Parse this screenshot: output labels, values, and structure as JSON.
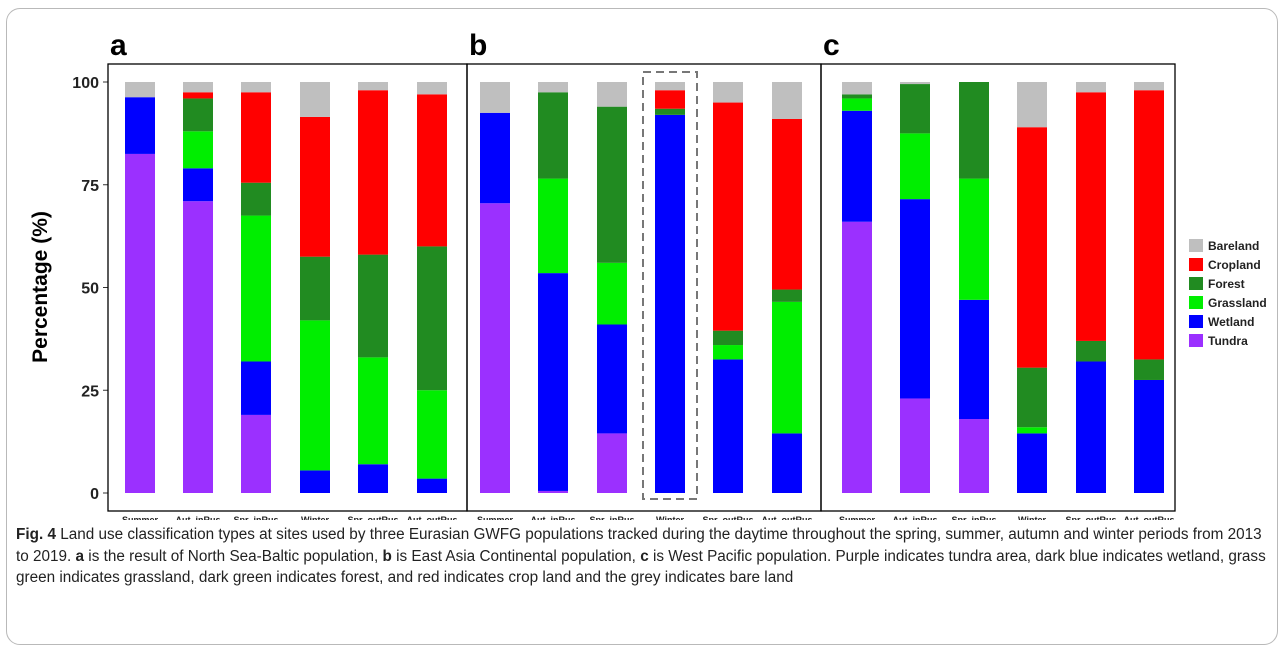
{
  "chart_data": {
    "type": "bar",
    "stacked": true,
    "ylabel": "Percentage (%)",
    "ylim": [
      0,
      100
    ],
    "yticks": [
      "0",
      "25",
      "50",
      "75",
      "100"
    ],
    "legend": {
      "placement": "right",
      "entries": [
        {
          "name": "Bareland",
          "color": "#bfbfbf"
        },
        {
          "name": "Cropland",
          "color": "#ff0000"
        },
        {
          "name": "Forest",
          "color": "#218b21"
        },
        {
          "name": "Grassland",
          "color": "#00ee00"
        },
        {
          "name": "Wetland",
          "color": "#0000ff"
        },
        {
          "name": "Tundra",
          "color": "#9b30ff"
        }
      ]
    },
    "panels": [
      {
        "label": "a",
        "categories": [
          "Summer",
          "Aut_inRus",
          "Spr_inRus",
          "Winter",
          "Spr_outRus",
          "Aut_outRus"
        ],
        "series": [
          {
            "name": "Tundra",
            "values": [
              82.5,
              71,
              19,
              0,
              0,
              0
            ]
          },
          {
            "name": "Wetland",
            "values": [
              13.8,
              8,
              13,
              5.5,
              7,
              3.5
            ]
          },
          {
            "name": "Grassland",
            "values": [
              0,
              9,
              35.5,
              36.5,
              26,
              21.5
            ]
          },
          {
            "name": "Forest",
            "values": [
              0,
              8,
              8,
              15.5,
              25,
              35
            ]
          },
          {
            "name": "Cropland",
            "values": [
              0,
              1.5,
              22,
              34,
              40,
              37
            ]
          },
          {
            "name": "Bareland",
            "values": [
              3.7,
              2.5,
              2.5,
              8.5,
              2,
              3
            ]
          }
        ]
      },
      {
        "label": "b",
        "categories": [
          "Summer",
          "Aut_inRus",
          "Spr_inRus",
          "Winter",
          "Spr_outRus",
          "Aut_outRus"
        ],
        "highlight": "Winter",
        "series": [
          {
            "name": "Tundra",
            "values": [
              70.5,
              0.5,
              14.5,
              0,
              0,
              0
            ]
          },
          {
            "name": "Wetland",
            "values": [
              22,
              53,
              26.5,
              92,
              32.5,
              14.5
            ]
          },
          {
            "name": "Grassland",
            "values": [
              0,
              23,
              15,
              0,
              3.5,
              32
            ]
          },
          {
            "name": "Forest",
            "values": [
              0,
              21,
              38,
              1.5,
              3.5,
              3
            ]
          },
          {
            "name": "Cropland",
            "values": [
              0,
              0,
              0,
              4.5,
              55.5,
              41.5
            ]
          },
          {
            "name": "Bareland",
            "values": [
              7.5,
              2.5,
              6,
              2,
              5,
              9
            ]
          }
        ]
      },
      {
        "label": "c",
        "categories": [
          "Summer",
          "Aut_inRus",
          "Spr_inRus",
          "Winter",
          "Spr_outRus",
          "Aut_outRus"
        ],
        "series": [
          {
            "name": "Tundra",
            "values": [
              66,
              23,
              18,
              0,
              0,
              0
            ]
          },
          {
            "name": "Wetland",
            "values": [
              27,
              48.5,
              29,
              14.5,
              32,
              27.5
            ]
          },
          {
            "name": "Grassland",
            "values": [
              3,
              16,
              29.5,
              1.5,
              0,
              0
            ]
          },
          {
            "name": "Forest",
            "values": [
              1,
              12,
              23.5,
              14.5,
              5,
              5
            ]
          },
          {
            "name": "Cropland",
            "values": [
              0,
              0,
              0,
              58.5,
              60.5,
              65.5
            ]
          },
          {
            "name": "Bareland",
            "values": [
              3,
              0.5,
              0,
              11,
              2.5,
              2
            ]
          }
        ]
      }
    ]
  },
  "caption": {
    "fig_label": "Fig. 4",
    "text_1": "  Land use classification types at sites used by three Eurasian GWFG populations tracked during the daytime throughout the spring, summer, autumn and winter periods from 2013 to 2019. ",
    "letter_a": "a",
    "text_2": " is the result of North Sea-Baltic population, ",
    "letter_b": "b",
    "text_3": " is East Asia Continental population, ",
    "letter_c": "c",
    "text_4": " is West Pacific population. Purple indicates tundra area, dark blue indicates wetland, grass green indicates grassland, dark green indicates forest, and red indicates crop land and the grey indicates bare land"
  }
}
